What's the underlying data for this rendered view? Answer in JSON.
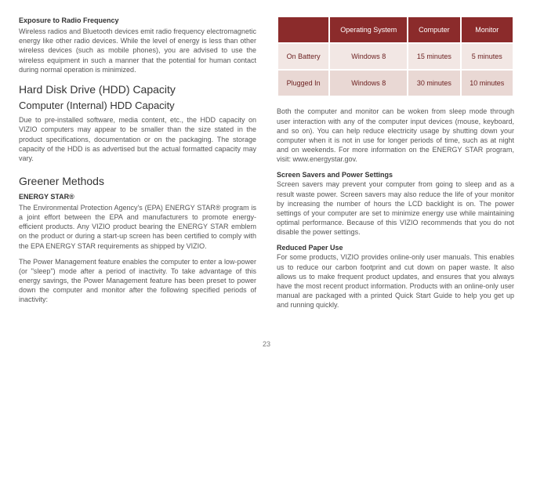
{
  "left": {
    "rf_heading": "Exposure to Radio Frequency",
    "rf_body": "Wireless radios and Bluetooth devices emit radio frequency electromagnetic energy like other radio devices. While the level of energy is less than other wireless devices (such as mobile phones), you are advised to use the wireless equipment in such a manner that the potential for human contact during normal operation is minimized.",
    "hdd_h1": "Hard Disk Drive (HDD) Capacity",
    "hdd_h2": "Computer (Internal) HDD Capacity",
    "hdd_body": "Due to pre-installed software, media content, etc., the HDD capacity on VIZIO computers may appear to be smaller than the size stated in the product specifications, documentation or on the packaging.  The storage capacity of the HDD is as advertised but the actual formatted capacity may vary.",
    "greener_h": "Greener Methods",
    "estar_h": "ENERGY STAR®",
    "estar_p1": "The Environmental Protection Agency's (EPA) ENERGY STAR® program is a joint effort between the EPA and manufacturers to promote energy-efficient products.  Any VIZIO product bearing the ENERGY STAR emblem on the product or during a start-up screen has been certified to comply with the EPA ENERGY STAR requirements as shipped by VIZIO.",
    "estar_p2": "The Power Management feature enables the computer to enter a low-power (or \"sleep\") mode after a period of inactivity. To take advantage of this energy savings, the Power Management feature has been preset to power down the computer and monitor after the following specified periods of inactivity:"
  },
  "table": {
    "header_bg": "#8b2b2b",
    "row_bg_a": "#f2e7e4",
    "row_bg_b": "#e9d8d4",
    "headers": [
      "",
      "Operating System",
      "Computer",
      "Monitor"
    ],
    "rows": [
      [
        "On Battery",
        "Windows 8",
        "15 minutes",
        "5 minutes"
      ],
      [
        "Plugged In",
        "Windows 8",
        "30 minutes",
        "10 minutes"
      ]
    ]
  },
  "right": {
    "p1": "Both the computer and monitor can be woken from sleep mode through user interaction with any of the computer input devices (mouse, keyboard, and so on). You can help reduce electricity usage by shutting down your computer when it is not in use for longer periods of time, such as at night and on weekends.  For more information on the ENERGY STAR program, visit: www.energystar.gov.",
    "ss_h": "Screen Savers and Power Settings",
    "ss_p": "Screen savers may prevent your computer from going to sleep and as a result waste power. Screen savers may also reduce the life of your monitor by increasing the number of hours the LCD backlight is on. The power settings of your computer are set to minimize energy use while maintaining optimal performance. Because of this VIZIO recommends that you do not disable the power settings.",
    "rp_h": "Reduced Paper Use",
    "rp_p": "For some products, VIZIO provides online-only user manuals. This enables us to reduce our carbon footprint and cut down on paper waste. It also allows us to make frequent product updates, and ensures that you always have the most recent product information. Products with an online-only user manual are packaged with a printed Quick Start Guide to help you get up and running quickly."
  },
  "page": "23"
}
